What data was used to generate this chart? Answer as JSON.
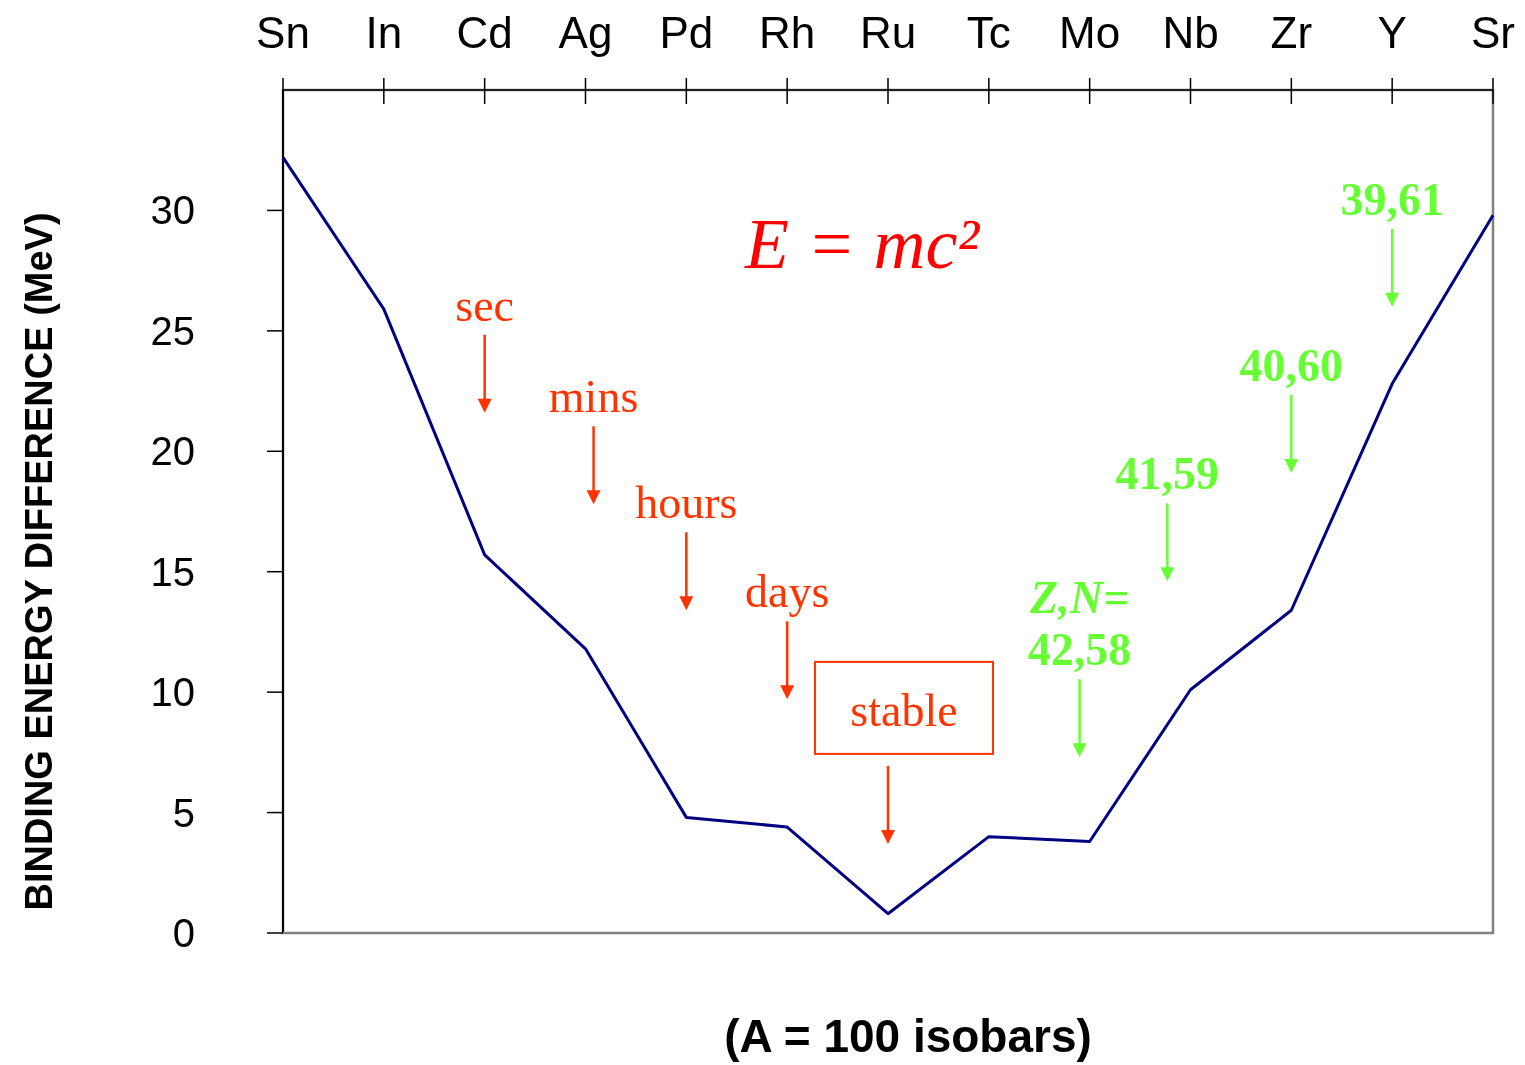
{
  "chart_data": {
    "type": "line",
    "xlabel": "(A = 100 isobars)",
    "ylabel": "BINDING ENERGY DIFFERENCE (MeV)",
    "categories": [
      "Sn",
      "In",
      "Cd",
      "Ag",
      "Pd",
      "Rh",
      "Ru",
      "Tc",
      "Mo",
      "Nb",
      "Zr",
      "Y",
      "Sr"
    ],
    "series": [
      {
        "color": "#000080",
        "values": [
          32.2,
          25.9,
          15.7,
          11.8,
          4.8,
          4.4,
          0.8,
          4.0,
          3.8,
          10.1,
          13.4,
          22.8,
          29.8
        ]
      }
    ],
    "ylim": [
      0,
      35
    ],
    "yticks": [
      0,
      5,
      10,
      15,
      20,
      25,
      30
    ],
    "grid": false,
    "marker": "none",
    "line_style": "solid",
    "annotations": [
      "E = mc²",
      "sec",
      "mins",
      "hours",
      "days",
      "stable",
      "Z,N= 42,58",
      "41,59",
      "40,60",
      "39,61"
    ]
  }
}
